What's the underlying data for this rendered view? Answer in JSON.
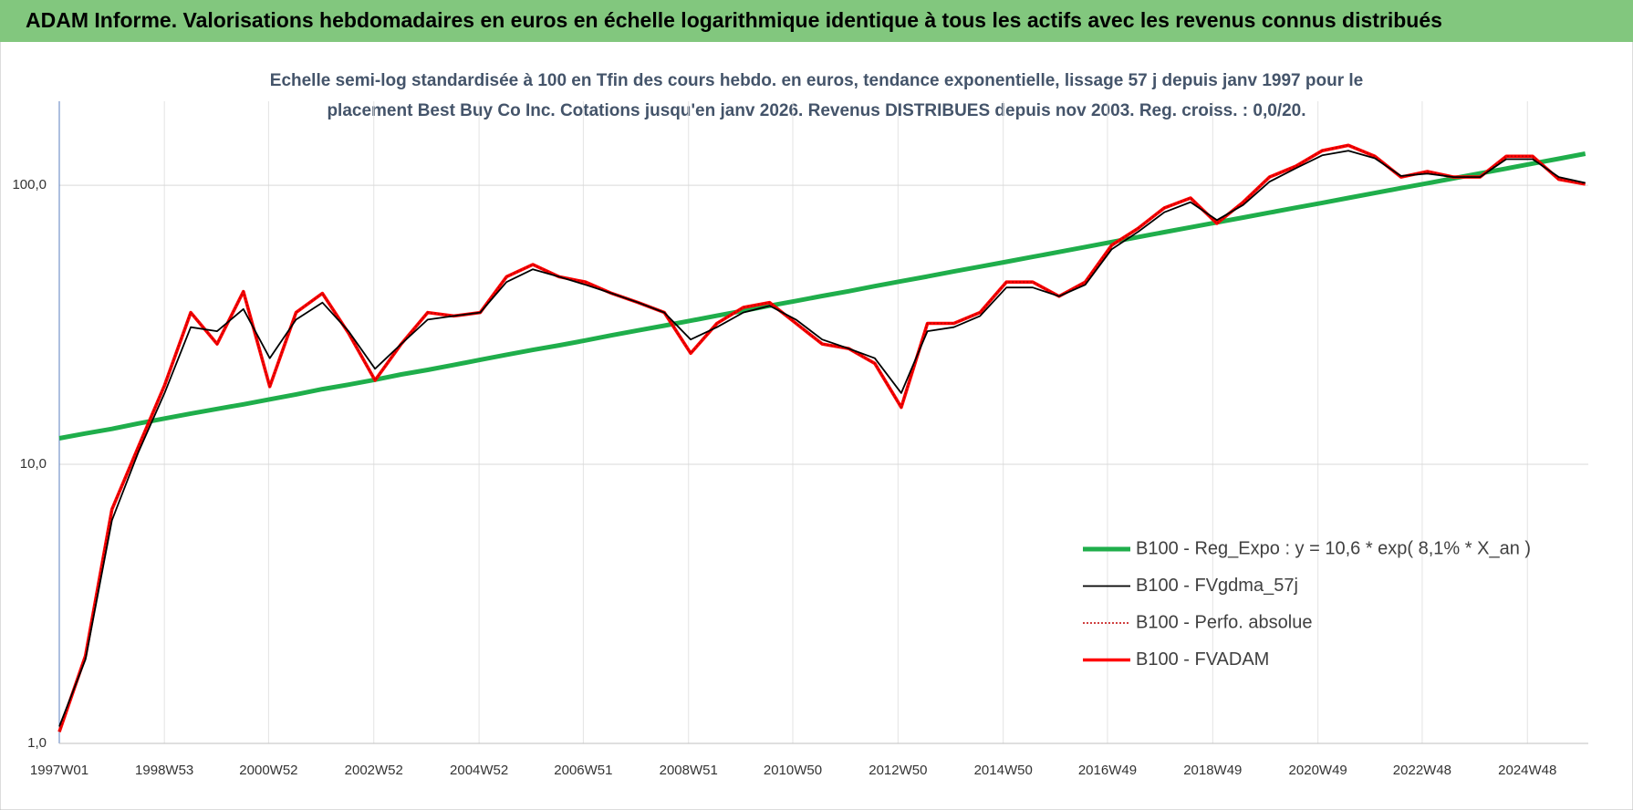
{
  "chart_data": {
    "type": "line",
    "title": "ADAM Informe. Valorisations hebdomadaires en euros en échelle logarithmique identique à tous les actifs avec les revenus connus distribués",
    "subtitle": [
      "Echelle semi-log standardisée à 100 en Tfin des cours hebdo. en euros, tendance exponentielle, lissage 57 j depuis janv 1997 pour le",
      "placement Best Buy Co Inc. Cotations jusqu'en janv 2026. Revenus DISTRIBUES depuis nov 2003. Reg. croiss. : 0,0/20."
    ],
    "log_scale": true,
    "grid": true,
    "legend": "right",
    "x": [
      "1997W01",
      "1997W27",
      "1998W01",
      "1998W27",
      "1999W01",
      "1999W27",
      "2000W01",
      "2000W27",
      "2001W01",
      "2001W27",
      "2002W01",
      "2002W27",
      "2003W01",
      "2003W27",
      "2004W01",
      "2004W27",
      "2005W01",
      "2005W27",
      "2006W01",
      "2006W27",
      "2007W01",
      "2007W27",
      "2008W01",
      "2008W27",
      "2009W01",
      "2009W27",
      "2010W01",
      "2010W27",
      "2011W01",
      "2011W27",
      "2012W01",
      "2012W27",
      "2013W01",
      "2013W27",
      "2014W01",
      "2014W27",
      "2015W01",
      "2015W27",
      "2016W01",
      "2016W27",
      "2017W01",
      "2017W27",
      "2018W01",
      "2018W27",
      "2019W01",
      "2019W27",
      "2020W01",
      "2020W27",
      "2021W01",
      "2021W27",
      "2022W01",
      "2022W27",
      "2023W01",
      "2023W27",
      "2024W01",
      "2024W27",
      "2025W01",
      "2025W27",
      "2026W01"
    ],
    "xlim": [
      "1997W01",
      "2026W04"
    ],
    "xticks": [
      "1997W01",
      "1998W53",
      "2000W52",
      "2002W52",
      "2004W52",
      "2006W51",
      "2008W51",
      "2010W50",
      "2012W50",
      "2014W50",
      "2016W49",
      "2018W49",
      "2020W49",
      "2022W48",
      "2024W48"
    ],
    "ylim": [
      1,
      200
    ],
    "yticks": [
      {
        "value": 1,
        "label": "1,0"
      },
      {
        "value": 10,
        "label": "10,0"
      },
      {
        "value": 100,
        "label": "100,0"
      }
    ],
    "series": [
      {
        "name": "B100 - Reg_Expo : y = 10,6 * exp( 8,1% *  X_an )",
        "color": "#1fae4b",
        "style": "solid",
        "values": [
          12.4,
          12.9,
          13.4,
          14.0,
          14.6,
          15.2,
          15.8,
          16.4,
          17.1,
          17.8,
          18.6,
          19.3,
          20.1,
          21.0,
          21.8,
          22.7,
          23.7,
          24.7,
          25.7,
          26.7,
          27.8,
          29.0,
          30.2,
          31.4,
          32.7,
          34.1,
          35.5,
          37.0,
          38.5,
          40.1,
          41.7,
          43.5,
          45.3,
          47.1,
          49.1,
          51.1,
          53.2,
          55.4,
          57.7,
          60.1,
          62.6,
          65.2,
          67.9,
          70.7,
          73.6,
          76.6,
          79.8,
          83.1,
          86.5,
          90.1,
          93.8,
          97.7,
          101.7,
          105.9,
          110.3,
          114.8,
          119.6,
          124.5,
          129.7
        ]
      },
      {
        "name": "B100 - FVgdma_57j",
        "color": "#000000",
        "style": "solid",
        "values": [
          1.15,
          2.0,
          6.3,
          11,
          18,
          31,
          30,
          36,
          24,
          33,
          38,
          30,
          22,
          27,
          33,
          34,
          35,
          45,
          50,
          47,
          44,
          41,
          38,
          35,
          28,
          31,
          35,
          37,
          33,
          28,
          26,
          24,
          18,
          30,
          31,
          34,
          43,
          43,
          40,
          44,
          59,
          68,
          80,
          87,
          75,
          85,
          103,
          115,
          128,
          133,
          125,
          108,
          110,
          107,
          107,
          124,
          124,
          107,
          102
        ]
      },
      {
        "name": "B100 - Perfo. absolue",
        "color": "#c00000",
        "style": "dotted",
        "values": [
          1.1,
          2.06,
          6.9,
          11.5,
          19.2,
          35,
          27,
          41.6,
          19,
          35,
          41,
          29.5,
          20,
          27,
          35,
          34,
          35,
          47,
          52,
          47,
          45,
          41,
          38,
          35,
          25,
          32,
          36.5,
          38,
          32,
          27,
          26,
          23,
          16,
          32,
          32,
          35,
          45,
          45,
          40,
          45,
          61,
          70,
          83,
          90,
          73,
          87,
          107,
          117,
          133,
          139,
          127,
          107,
          112,
          107,
          107,
          127,
          127,
          105,
          101
        ]
      },
      {
        "name": "B100 - FVADAM",
        "color": "#ff0000",
        "style": "solid",
        "values": [
          1.1,
          2.06,
          6.9,
          11.5,
          19.2,
          35,
          27,
          41.6,
          19,
          35,
          41,
          29.5,
          20,
          27,
          35,
          34,
          35,
          47,
          52,
          47,
          45,
          41,
          38,
          35,
          25,
          32,
          36.5,
          38,
          32,
          27,
          26,
          23,
          16,
          32,
          32,
          35,
          45,
          45,
          40,
          45,
          61,
          70,
          83,
          90,
          73,
          87,
          107,
          117,
          133,
          139,
          127,
          107,
          112,
          107,
          107,
          127,
          127,
          105,
          101
        ]
      }
    ]
  }
}
